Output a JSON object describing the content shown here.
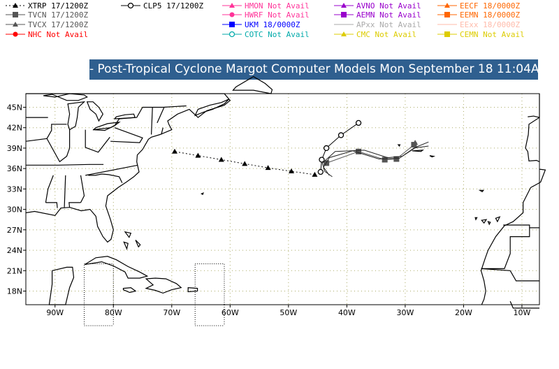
{
  "legend": {
    "col1": [
      {
        "label": "XTRP 17/1200Z",
        "color": "#000000",
        "marker": "triangle",
        "line": "dotted"
      },
      {
        "label": "TVCN 17/1200Z",
        "color": "#555555",
        "marker": "square",
        "line": "solid"
      },
      {
        "label": "TVCX 17/1200Z",
        "color": "#555555",
        "marker": "triangle",
        "line": "solid"
      },
      {
        "label": "NHC Not Avail",
        "color": "#ff0000",
        "marker": "circle",
        "line": "solid"
      }
    ],
    "col2": [
      {
        "label": "CLP5 17/1200Z",
        "color": "#000000",
        "marker": "open-circle",
        "line": "solid"
      }
    ],
    "col3": [
      {
        "label": "HMON Not Avail",
        "color": "#ff3399",
        "marker": "triangle",
        "line": "solid"
      },
      {
        "label": "HWRF Not Avail",
        "color": "#ff3399",
        "marker": "circle",
        "line": "solid"
      },
      {
        "label": "UKM  18/0000Z",
        "color": "#0000ff",
        "marker": "square",
        "line": "solid"
      },
      {
        "label": "COTC Not Avail",
        "color": "#00aaaa",
        "marker": "open-circle",
        "line": "solid"
      }
    ],
    "col4": [
      {
        "label": "AVNO Not Avail",
        "color": "#9900cc",
        "marker": "triangle",
        "line": "solid"
      },
      {
        "label": "AEMN Not Avail",
        "color": "#9900cc",
        "marker": "square",
        "line": "solid"
      },
      {
        "label": "APxx  Not Avail",
        "color": "#aaaaaa",
        "marker": "none",
        "line": "solid"
      },
      {
        "label": "CMC   Not Avail",
        "color": "#ddcc00",
        "marker": "triangle",
        "line": "solid"
      }
    ],
    "col5": [
      {
        "label": "EECF 18/0000Z",
        "color": "#ff6600",
        "marker": "triangle",
        "line": "solid"
      },
      {
        "label": "EEMN 18/0000Z",
        "color": "#ff6600",
        "marker": "square",
        "line": "solid"
      },
      {
        "label": "EExx  18/0000Z",
        "color": "#ffbbaa",
        "marker": "none",
        "line": "solid"
      },
      {
        "label": "CEMN Not Avail",
        "color": "#ddcc00",
        "marker": "square",
        "line": "solid"
      }
    ]
  },
  "title": "- Post-Tropical Cyclone Margot Computer Models Mon September 18 11:04AM -",
  "map": {
    "lon_range": [
      -95,
      -7
    ],
    "lat_range": [
      16,
      47
    ],
    "lat_ticks": [
      "45N",
      "42N",
      "39N",
      "36N",
      "33N",
      "30N",
      "27N",
      "24N",
      "21N",
      "18N"
    ],
    "lon_ticks": [
      "90W",
      "80W",
      "70W",
      "60W",
      "50W",
      "40W",
      "30W",
      "20W",
      "10W"
    ],
    "grid": "dotted",
    "land_color": "#ffffff",
    "coast_color": "#000000",
    "grid_color": "#aaaa66"
  },
  "tracks": [
    {
      "model": "XTRP",
      "color": "#000000",
      "style": "dotted",
      "marker": "triangle",
      "points": [
        [
          -45.5,
          35.1
        ],
        [
          -49.5,
          35.6
        ],
        [
          -53.5,
          36.1
        ],
        [
          -57.5,
          36.7
        ],
        [
          -61.5,
          37.3
        ],
        [
          -65.5,
          37.9
        ],
        [
          -69.5,
          38.5
        ]
      ]
    },
    {
      "model": "CLP5",
      "color": "#000000",
      "style": "solid",
      "marker": "open-circle",
      "points": [
        [
          -44.5,
          35.5
        ],
        [
          -44.3,
          37.3
        ],
        [
          -43.5,
          39.0
        ],
        [
          -41.0,
          40.9
        ],
        [
          -38.0,
          42.7
        ]
      ]
    },
    {
      "model": "TVCN",
      "color": "#555555",
      "style": "solid",
      "marker": "square",
      "points": [
        [
          -43.5,
          36.8
        ],
        [
          -38.0,
          38.5
        ],
        [
          -33.5,
          37.3
        ],
        [
          -31.5,
          37.4
        ],
        [
          -28.5,
          39.5
        ]
      ]
    },
    {
      "model": "TVCX",
      "color": "#555555",
      "style": "solid",
      "marker": "triangle",
      "points": [
        [
          -28.3,
          39.8
        ]
      ]
    },
    {
      "model": "UKM",
      "color": "#222222",
      "style": "solid",
      "marker": "none",
      "points": [
        [
          -42.5,
          34.8
        ],
        [
          -43.8,
          35.6
        ],
        [
          -44.2,
          36.8
        ],
        [
          -42.0,
          38.5
        ],
        [
          -37.0,
          38.7
        ],
        [
          -33.0,
          37.6
        ],
        [
          -30.5,
          37.8
        ],
        [
          -28.0,
          39.2
        ],
        [
          -26.0,
          39.9
        ]
      ]
    },
    {
      "model": "EECF",
      "color": "#222222",
      "style": "solid",
      "marker": "none",
      "points": [
        [
          -43.0,
          35.0
        ],
        [
          -44.0,
          36.2
        ],
        [
          -43.0,
          37.6
        ],
        [
          -39.0,
          38.6
        ],
        [
          -34.5,
          37.4
        ],
        [
          -31.0,
          37.5
        ],
        [
          -28.5,
          39.0
        ],
        [
          -26.0,
          39.3
        ]
      ]
    }
  ]
}
